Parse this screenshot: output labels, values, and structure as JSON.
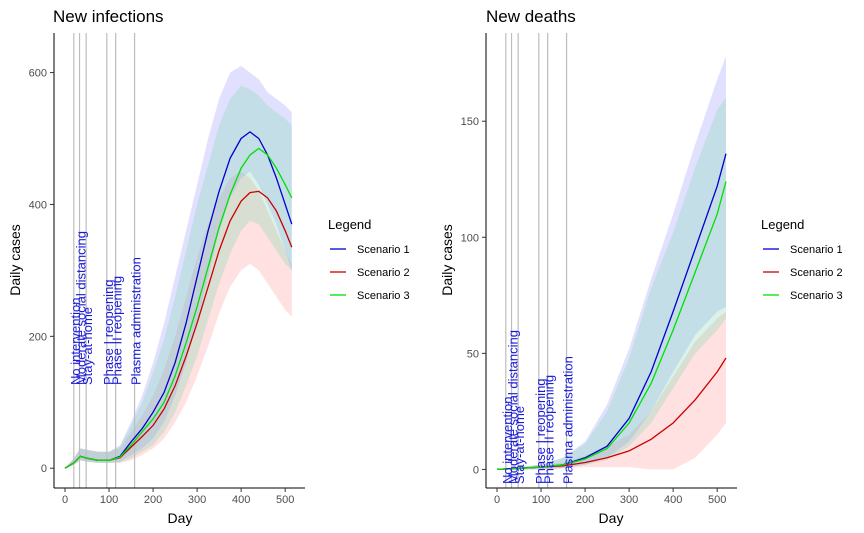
{
  "colors": {
    "scenario1": "#0000cd",
    "scenario2": "#cd0000",
    "scenario3": "#00e000",
    "band1": "#9b9bff",
    "band2": "#ff9b9b",
    "band3": "#7fd6b0",
    "event_label": "#1a1adb"
  },
  "legend": {
    "title": "Legend",
    "entries": [
      "Scenario 1",
      "Scenario 2",
      "Scenario 3"
    ]
  },
  "events": [
    {
      "label": "No intervention",
      "day": 20
    },
    {
      "label": "Moderate social distancing",
      "day": 33
    },
    {
      "label": "Stay-at-home",
      "day": 48
    },
    {
      "label": "Phase I reopening",
      "day": 95
    },
    {
      "label": "Phase II reopening",
      "day": 115
    },
    {
      "label": "Plasma administration",
      "day": 158
    }
  ],
  "chart_data": [
    {
      "type": "line",
      "title": "New infections",
      "xlabel": "Day",
      "ylabel": "Daily cases",
      "xlim": [
        -25,
        545
      ],
      "ylim": [
        -30,
        660
      ],
      "xticks": [
        0,
        100,
        200,
        300,
        400,
        500
      ],
      "yticks": [
        0,
        200,
        400,
        600
      ],
      "grid": false,
      "legend_position": "right",
      "series": [
        {
          "name": "Scenario 1",
          "x": [
            0,
            20,
            35,
            50,
            75,
            100,
            125,
            150,
            175,
            200,
            225,
            250,
            275,
            300,
            325,
            350,
            375,
            400,
            420,
            440,
            460,
            480,
            500,
            515
          ],
          "y": [
            0,
            8,
            18,
            15,
            12,
            12,
            18,
            40,
            60,
            85,
            115,
            160,
            220,
            290,
            360,
            420,
            470,
            500,
            510,
            500,
            475,
            440,
            400,
            370
          ],
          "lower": [
            0,
            5,
            12,
            10,
            8,
            8,
            10,
            20,
            30,
            45,
            70,
            110,
            160,
            220,
            290,
            360,
            410,
            440,
            450,
            430,
            400,
            370,
            330,
            300
          ],
          "upper": [
            0,
            15,
            30,
            28,
            25,
            25,
            35,
            70,
            110,
            160,
            220,
            290,
            360,
            430,
            500,
            560,
            600,
            610,
            600,
            590,
            570,
            560,
            550,
            540
          ]
        },
        {
          "name": "Scenario 2",
          "x": [
            0,
            20,
            35,
            50,
            75,
            100,
            125,
            150,
            175,
            200,
            225,
            250,
            275,
            300,
            325,
            350,
            375,
            400,
            420,
            440,
            460,
            480,
            500,
            515
          ],
          "y": [
            0,
            8,
            18,
            15,
            12,
            12,
            16,
            32,
            48,
            65,
            90,
            125,
            170,
            220,
            275,
            330,
            375,
            405,
            418,
            420,
            410,
            390,
            360,
            335
          ],
          "lower": [
            0,
            5,
            12,
            10,
            8,
            8,
            8,
            12,
            20,
            30,
            45,
            70,
            100,
            140,
            185,
            235,
            275,
            300,
            310,
            300,
            280,
            260,
            240,
            230
          ],
          "upper": [
            0,
            15,
            30,
            28,
            25,
            25,
            30,
            55,
            80,
            110,
            150,
            200,
            260,
            320,
            370,
            410,
            440,
            450,
            440,
            420,
            390,
            360,
            330,
            310
          ]
        },
        {
          "name": "Scenario 3",
          "x": [
            0,
            20,
            35,
            50,
            75,
            100,
            125,
            150,
            175,
            200,
            225,
            250,
            275,
            300,
            325,
            350,
            375,
            400,
            420,
            440,
            460,
            480,
            500,
            515
          ],
          "y": [
            0,
            8,
            18,
            15,
            12,
            12,
            17,
            35,
            55,
            75,
            100,
            140,
            190,
            245,
            305,
            365,
            415,
            455,
            475,
            485,
            475,
            455,
            430,
            410
          ],
          "lower": [
            0,
            5,
            12,
            10,
            8,
            8,
            9,
            15,
            25,
            35,
            55,
            85,
            125,
            170,
            225,
            280,
            325,
            360,
            375,
            370,
            350,
            330,
            310,
            300
          ],
          "upper": [
            0,
            15,
            30,
            28,
            25,
            25,
            33,
            65,
            100,
            145,
            195,
            260,
            330,
            400,
            460,
            520,
            560,
            580,
            575,
            565,
            550,
            540,
            530,
            520
          ]
        }
      ]
    },
    {
      "type": "line",
      "title": "New deaths",
      "xlabel": "Day",
      "ylabel": "Daily cases",
      "xlim": [
        -25,
        545
      ],
      "ylim": [
        -8,
        188
      ],
      "xticks": [
        0,
        100,
        200,
        300,
        400,
        500
      ],
      "yticks": [
        0,
        50,
        100,
        150
      ],
      "grid": false,
      "legend_position": "right",
      "series": [
        {
          "name": "Scenario 1",
          "x": [
            0,
            50,
            100,
            150,
            200,
            250,
            300,
            350,
            400,
            450,
            500,
            520
          ],
          "y": [
            0,
            0.5,
            1,
            2,
            5,
            10,
            22,
            42,
            68,
            95,
            122,
            136
          ],
          "lower": [
            0,
            0,
            0,
            0.5,
            2,
            5,
            12,
            25,
            42,
            58,
            68,
            70
          ],
          "upper": [
            0,
            1,
            2,
            5,
            12,
            28,
            52,
            82,
            110,
            140,
            168,
            178
          ]
        },
        {
          "name": "Scenario 2",
          "x": [
            0,
            50,
            100,
            150,
            200,
            250,
            300,
            350,
            400,
            450,
            500,
            520
          ],
          "y": [
            0,
            0.5,
            1,
            1.5,
            3,
            5,
            8,
            13,
            20,
            30,
            42,
            48
          ],
          "lower": [
            0,
            0,
            0,
            0.5,
            1,
            1,
            1,
            0,
            0,
            5,
            15,
            20
          ],
          "upper": [
            0,
            1,
            2,
            3,
            6,
            10,
            15,
            25,
            40,
            55,
            65,
            68
          ]
        },
        {
          "name": "Scenario 3",
          "x": [
            0,
            50,
            100,
            150,
            200,
            250,
            300,
            350,
            400,
            450,
            500,
            520
          ],
          "y": [
            0,
            0.5,
            1,
            2,
            4.5,
            9,
            20,
            37,
            60,
            85,
            110,
            124
          ],
          "lower": [
            0,
            0,
            0,
            0.5,
            2,
            4,
            10,
            20,
            35,
            50,
            60,
            65
          ],
          "upper": [
            0,
            1,
            2,
            5,
            11,
            25,
            48,
            78,
            102,
            130,
            155,
            160
          ]
        }
      ]
    }
  ]
}
